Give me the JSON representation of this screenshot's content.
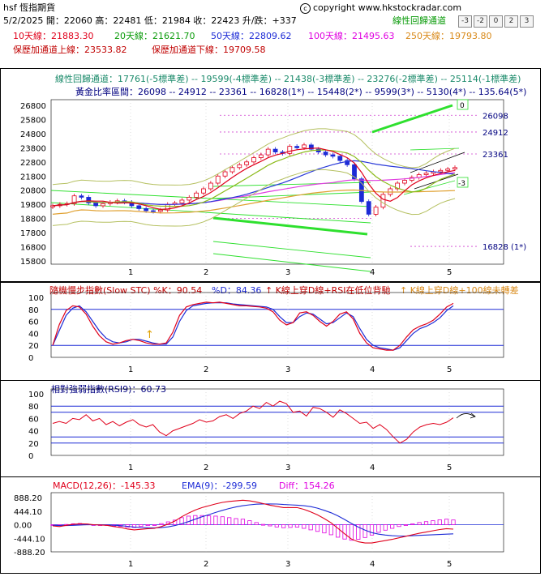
{
  "header": {
    "symbol": "hsf 恆指期貨",
    "copyright": "copyright www.hkstockradar.com",
    "ohlc": "5/2/2025 開：22060 高：22481 低：21984 收：22423 升/跌：+337",
    "regression_channel_label": "線性回歸通道",
    "buttons": [
      "-3",
      "-2",
      "0",
      "2",
      "3"
    ],
    "ma10": "10天線：21883.30",
    "ma20": "20天線：21621.70",
    "ma50": "50天線：22809.62",
    "ma100": "100天線：21495.63",
    "ma250": "250天線：19793.80",
    "upper_band": "保歷加通道上線：23533.82",
    "lower_band": "保歷加通道下線：19709.58",
    "regression_line": "線性回歸通道：17761(-5標準差) -- 19599(-4標準差) -- 21438(-3標準差) -- 23276(-2標準差) -- 25114(-1標準差)",
    "fib_line": "黃金比率區間：26098 -- 24912 -- 23361 -- 16828(1*) -- 15448(2*) -- 9599(3*) -- 5130(4*) -- 135.64(5*)"
  },
  "colors": {
    "up": "#e0001b",
    "down": "#1d2bd6",
    "ma10": "#e0001b",
    "ma20": "#8cba1a",
    "ma50": "#2a3ad8",
    "ma100": "#e040e0",
    "ma250": "#e0a030",
    "trend": "#2ee02e"
  },
  "price_panel": {
    "y_ticks": [
      "26800",
      "25800",
      "24800",
      "23800",
      "22800",
      "21800",
      "20800",
      "19800",
      "18800",
      "17800",
      "16800",
      "15800"
    ],
    "x_ticks": [
      "1",
      "2",
      "3",
      "4",
      "5"
    ],
    "right_labels": [
      "26098",
      "24912",
      "23361",
      "16828 (1*)"
    ],
    "flag_zero": "0",
    "flag_minus3": "-3"
  },
  "stc_panel": {
    "title": "隨機慢步指數(Slow STC) %K：90.54",
    "d_label": "%D：84.36",
    "signal1": "K線上穿D線+RSI在低位背馳",
    "signal2": "K線上穿D線+100線未轉差",
    "y_ticks": [
      "100",
      "80",
      "60",
      "40",
      "20",
      "0"
    ],
    "x_ticks": [
      "1",
      "2",
      "3",
      "4",
      "5"
    ],
    "k": [
      20,
      55,
      78,
      86,
      84,
      72,
      52,
      36,
      26,
      22,
      24,
      28,
      30,
      28,
      24,
      22,
      22,
      24,
      42,
      70,
      84,
      88,
      90,
      92,
      91,
      92,
      90,
      88,
      86,
      86,
      85,
      84,
      82,
      76,
      62,
      54,
      58,
      74,
      76,
      70,
      60,
      52,
      60,
      72,
      76,
      64,
      40,
      24,
      16,
      14,
      12,
      12,
      20,
      34,
      46,
      52,
      56,
      62,
      72,
      84,
      90
    ],
    "d": [
      20,
      45,
      70,
      82,
      86,
      76,
      60,
      44,
      32,
      26,
      24,
      26,
      30,
      30,
      27,
      24,
      22,
      22,
      34,
      60,
      78,
      86,
      88,
      90,
      91,
      91,
      91,
      89,
      88,
      87,
      86,
      85,
      84,
      80,
      68,
      58,
      58,
      68,
      74,
      72,
      64,
      56,
      58,
      66,
      74,
      68,
      48,
      30,
      20,
      16,
      14,
      12,
      16,
      28,
      40,
      48,
      52,
      58,
      66,
      78,
      86
    ]
  },
  "rsi_panel": {
    "title": "相對強弱指數(RSI9)：60.73",
    "y_ticks": [
      "100",
      "80",
      "60",
      "40",
      "20",
      "0"
    ],
    "x_ticks": [
      "1",
      "2",
      "3",
      "4",
      "5"
    ],
    "rsi": [
      52,
      55,
      52,
      60,
      58,
      66,
      56,
      60,
      50,
      55,
      48,
      54,
      58,
      50,
      46,
      50,
      38,
      32,
      40,
      44,
      48,
      52,
      58,
      54,
      56,
      63,
      66,
      60,
      68,
      72,
      80,
      76,
      86,
      80,
      88,
      84,
      70,
      72,
      64,
      78,
      76,
      70,
      62,
      74,
      68,
      60,
      52,
      54,
      44,
      50,
      42,
      30,
      20,
      26,
      38,
      46,
      50,
      52,
      50,
      54,
      61
    ]
  },
  "macd_panel": {
    "title": "MACD(12,26)：-145.33",
    "ema_label": "EMA(9)：-299.59",
    "diff_label": "Diff：154.26",
    "y_ticks": [
      "888.20",
      "444.10",
      "0.00",
      "-444.10",
      "-888.20"
    ],
    "x_ticks": [
      "1",
      "2",
      "3",
      "4",
      "5"
    ],
    "macd": [
      -40,
      -60,
      -20,
      10,
      30,
      20,
      0,
      -10,
      -20,
      -60,
      -90,
      -140,
      -170,
      -150,
      -130,
      -120,
      -60,
      20,
      120,
      260,
      380,
      480,
      560,
      620,
      680,
      730,
      760,
      780,
      800,
      780,
      740,
      690,
      640,
      600,
      560,
      560,
      560,
      500,
      420,
      320,
      200,
      60,
      -120,
      -300,
      -470,
      -560,
      -600,
      -600,
      -560,
      -520,
      -480,
      -430,
      -380,
      -330,
      -280,
      -240,
      -200,
      -160,
      -130,
      -145
    ],
    "ema": [
      -20,
      -30,
      -28,
      -20,
      -10,
      -2,
      -2,
      -4,
      -8,
      -18,
      -32,
      -54,
      -78,
      -92,
      -100,
      -104,
      -96,
      -72,
      -30,
      30,
      100,
      180,
      260,
      330,
      400,
      470,
      530,
      580,
      620,
      650,
      670,
      680,
      680,
      675,
      660,
      650,
      640,
      620,
      590,
      540,
      470,
      390,
      290,
      170,
      40,
      -80,
      -180,
      -260,
      -310,
      -340,
      -360,
      -370,
      -370,
      -360,
      -350,
      -340,
      -330,
      -320,
      -310,
      -300
    ],
    "diff": [
      -20,
      -30,
      8,
      30,
      40,
      22,
      2,
      -6,
      -12,
      -42,
      -58,
      -86,
      -92,
      -58,
      -30,
      -16,
      36,
      92,
      150,
      230,
      280,
      300,
      300,
      290,
      280,
      260,
      230,
      200,
      180,
      130,
      70,
      10,
      -40,
      -75,
      -100,
      -90,
      -80,
      -120,
      -170,
      -220,
      -270,
      -330,
      -410,
      -470,
      -510,
      -480,
      -420,
      -340,
      -250,
      -180,
      -120,
      -60,
      -10,
      30,
      70,
      100,
      130,
      160,
      180,
      154
    ]
  },
  "chart_data": [
    {
      "type": "line",
      "title": "hsf 恆指期貨",
      "ylim": [
        15800,
        26800
      ],
      "x_ticks": [
        "1",
        "2",
        "3",
        "4",
        "5"
      ],
      "last_ohlc": {
        "date": "5/2/2025",
        "open": 22060,
        "high": 22481,
        "low": 21984,
        "close": 22423,
        "change": 337
      },
      "close": [
        19700,
        19800,
        19850,
        20400,
        20300,
        19900,
        19700,
        19850,
        19950,
        20050,
        19950,
        19700,
        19500,
        19350,
        19300,
        19400,
        19800,
        19900,
        20100,
        20300,
        20600,
        20900,
        21300,
        21800,
        22100,
        22400,
        22600,
        22800,
        23100,
        23300,
        23700,
        23500,
        23400,
        23900,
        23800,
        24000,
        23700,
        23500,
        23300,
        23200,
        22900,
        22600,
        21600,
        20000,
        19100,
        19600,
        20500,
        20900,
        21300,
        21500,
        21700,
        21900,
        22000,
        22100,
        22200,
        22300,
        22400
      ],
      "moving_averages": {
        "ma10": 21883.3,
        "ma20": 21621.7,
        "ma50": 22809.62,
        "ma100": 21495.63,
        "ma250": 19793.8
      },
      "bollinger": {
        "upper": 23533.82,
        "lower": 19709.58
      },
      "fib_levels": [
        26098,
        24912,
        23361,
        16828
      ]
    },
    {
      "type": "line",
      "title": "隨機慢步指數(Slow STC)",
      "ylim": [
        0,
        100
      ],
      "series": [
        {
          "name": "%K",
          "last": 90.54
        },
        {
          "name": "%D",
          "last": 84.36
        }
      ]
    },
    {
      "type": "line",
      "title": "相對強弱指數(RSI9)",
      "ylim": [
        0,
        100
      ],
      "series": [
        {
          "name": "RSI9",
          "last": 60.73
        }
      ]
    },
    {
      "type": "line",
      "title": "MACD(12,26)",
      "ylim": [
        -888.2,
        888.2
      ],
      "series": [
        {
          "name": "MACD(12,26)",
          "last": -145.33
        },
        {
          "name": "EMA(9)",
          "last": -299.59
        },
        {
          "name": "Diff",
          "last": 154.26
        }
      ]
    }
  ]
}
